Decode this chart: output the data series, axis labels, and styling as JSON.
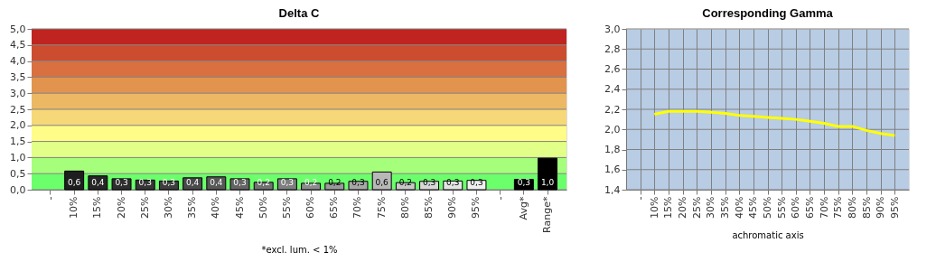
{
  "chart_data": [
    {
      "type": "bar",
      "title": "Delta C",
      "categories": [
        "-",
        "10%",
        "15%",
        "20%",
        "25%",
        "30%",
        "35%",
        "40%",
        "45%",
        "50%",
        "55%",
        "60%",
        "65%",
        "70%",
        "75%",
        "80%",
        "85%",
        "90%",
        "95%",
        "-",
        "Avg*",
        "Range*"
      ],
      "values": [
        null,
        0.58,
        0.43,
        0.34,
        0.3,
        0.27,
        0.37,
        0.4,
        0.34,
        0.23,
        0.34,
        0.2,
        0.2,
        0.26,
        0.55,
        0.22,
        0.26,
        0.27,
        0.29,
        null,
        0.32,
        0.98
      ],
      "colors": [
        "#000000",
        "#1e1e1e",
        "#262626",
        "#2e2e2e",
        "#363636",
        "#3e3e3e",
        "#4a4a4a",
        "#575757",
        "#646464",
        "#717171",
        "#7e7e7e",
        "#8c8c8c",
        "#9a9a9a",
        "#a8a8a8",
        "#b8b8b8",
        "#c8c8c8",
        "#d8d8d8",
        "#e4e4e4",
        "#f0f0f0",
        "#000000",
        "#000000",
        "#000000"
      ],
      "value_labels": [
        null,
        "0,6",
        "0,4",
        "0,3",
        "0,3",
        "0,3",
        "0,4",
        "0,4",
        "0,3",
        "0,2",
        "0,3",
        "0,2",
        "0,2",
        "0,3",
        "0,6",
        "0,2",
        "0,3",
        "0,3",
        "0,3",
        null,
        "0,3",
        "1,0"
      ],
      "ylim": [
        0,
        5
      ],
      "yticks": [
        {
          "value": 0,
          "label": "0,0"
        },
        {
          "value": 0.5,
          "label": "0,5"
        },
        {
          "value": 1,
          "label": "1,0"
        },
        {
          "value": 1.5,
          "label": "1,5"
        },
        {
          "value": 2,
          "label": "2,0"
        },
        {
          "value": 2.5,
          "label": "2,5"
        },
        {
          "value": 3,
          "label": "3,0"
        },
        {
          "value": 3.5,
          "label": "3,5"
        },
        {
          "value": 4,
          "label": "4,0"
        },
        {
          "value": 4.5,
          "label": "4,5"
        },
        {
          "value": 5,
          "label": "5,0"
        }
      ],
      "grid": "y",
      "bands": [
        {
          "axis": "y",
          "from": 0,
          "to": 0.5,
          "color": "#6cff6c"
        },
        {
          "axis": "y",
          "from": 0.5,
          "to": 1,
          "color": "#a6ff7a"
        },
        {
          "axis": "y",
          "from": 1,
          "to": 1.5,
          "color": "#e2ff88"
        },
        {
          "axis": "y",
          "from": 1.5,
          "to": 2,
          "color": "#fffc88"
        },
        {
          "axis": "y",
          "from": 2,
          "to": 2.5,
          "color": "#f6d878"
        },
        {
          "axis": "y",
          "from": 2.5,
          "to": 3,
          "color": "#ecb864"
        },
        {
          "axis": "y",
          "from": 3,
          "to": 3.5,
          "color": "#e2944e"
        },
        {
          "axis": "y",
          "from": 3.5,
          "to": 4,
          "color": "#d87040"
        },
        {
          "axis": "y",
          "from": 4,
          "to": 4.5,
          "color": "#cc4c30"
        },
        {
          "axis": "y",
          "from": 4.5,
          "to": 5,
          "color": "#c02420"
        }
      ],
      "annotations": [
        "*excl. lum. < 1%"
      ]
    },
    {
      "type": "line",
      "title": "Corresponding Gamma",
      "xlabel": "achromatic axis",
      "categories": [
        "-",
        "10%",
        "15%",
        "20%",
        "25%",
        "30%",
        "35%",
        "40%",
        "45%",
        "50%",
        "55%",
        "60%",
        "65%",
        "70%",
        "75%",
        "80%",
        "85%",
        "90%",
        "95%"
      ],
      "series": [
        {
          "color": "#ffff00",
          "values": [
            null,
            2.15,
            2.18,
            2.18,
            2.18,
            2.17,
            2.16,
            2.14,
            2.13,
            2.12,
            2.11,
            2.1,
            2.08,
            2.06,
            2.03,
            2.03,
            1.99,
            1.96,
            1.94
          ]
        }
      ],
      "ylim": [
        1.4,
        3.0
      ],
      "yticks": [
        {
          "value": 1.4,
          "label": "1,4"
        },
        {
          "value": 1.6,
          "label": "1,6"
        },
        {
          "value": 1.8,
          "label": "1,8"
        },
        {
          "value": 2.0,
          "label": "2,0"
        },
        {
          "value": 2.2,
          "label": "2,2"
        },
        {
          "value": 2.4,
          "label": "2,4"
        },
        {
          "value": 2.6,
          "label": "2,6"
        },
        {
          "value": 2.8,
          "label": "2,8"
        },
        {
          "value": 3.0,
          "label": "3,0"
        }
      ],
      "grid": true
    }
  ]
}
